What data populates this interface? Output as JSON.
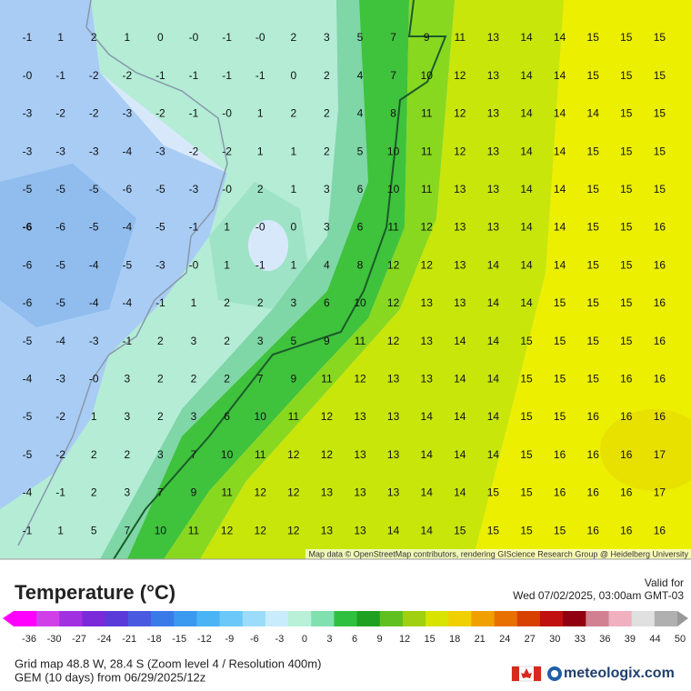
{
  "map": {
    "grid": [
      [
        "-1",
        "1",
        "2",
        "1",
        "0",
        "-0",
        "-1",
        "-0",
        "2",
        "3",
        "5",
        "7",
        "9",
        "11",
        "13",
        "14",
        "14",
        "15",
        "15",
        "15"
      ],
      [
        "-0",
        "-1",
        "-2",
        "-2",
        "-1",
        "-1",
        "-1",
        "-1",
        "0",
        "2",
        "4",
        "7",
        "10",
        "12",
        "13",
        "14",
        "14",
        "15",
        "15",
        "15"
      ],
      [
        "-3",
        "-2",
        "-2",
        "-3",
        "-2",
        "-1",
        "-0",
        "1",
        "2",
        "2",
        "4",
        "8",
        "11",
        "12",
        "13",
        "14",
        "14",
        "14",
        "15",
        "15"
      ],
      [
        "-3",
        "-3",
        "-3",
        "-4",
        "-3",
        "-2",
        "-2",
        "1",
        "1",
        "2",
        "5",
        "10",
        "11",
        "12",
        "13",
        "14",
        "14",
        "15",
        "15",
        "15"
      ],
      [
        "-5",
        "-5",
        "-5",
        "-6",
        "-5",
        "-3",
        "-0",
        "2",
        "1",
        "3",
        "6",
        "10",
        "11",
        "13",
        "13",
        "14",
        "14",
        "15",
        "15",
        "15"
      ],
      [
        "-6",
        "-6",
        "-5",
        "-4",
        "-5",
        "-1",
        "1",
        "-0",
        "0",
        "3",
        "6",
        "11",
        "12",
        "13",
        "13",
        "14",
        "14",
        "15",
        "15",
        "16"
      ],
      [
        "-6",
        "-5",
        "-4",
        "-5",
        "-3",
        "-0",
        "1",
        "-1",
        "1",
        "4",
        "8",
        "12",
        "12",
        "13",
        "14",
        "14",
        "14",
        "15",
        "15",
        "16"
      ],
      [
        "-6",
        "-5",
        "-4",
        "-4",
        "-1",
        "1",
        "2",
        "2",
        "3",
        "6",
        "10",
        "12",
        "13",
        "13",
        "14",
        "14",
        "15",
        "15",
        "15",
        "16"
      ],
      [
        "-5",
        "-4",
        "-3",
        "-1",
        "2",
        "3",
        "2",
        "3",
        "5",
        "9",
        "11",
        "12",
        "13",
        "14",
        "14",
        "15",
        "15",
        "15",
        "15",
        "16"
      ],
      [
        "-4",
        "-3",
        "-0",
        "3",
        "2",
        "2",
        "2",
        "7",
        "9",
        "11",
        "12",
        "13",
        "13",
        "14",
        "14",
        "15",
        "15",
        "15",
        "16",
        "16"
      ],
      [
        "-5",
        "-2",
        "1",
        "3",
        "2",
        "3",
        "6",
        "10",
        "11",
        "12",
        "13",
        "13",
        "14",
        "14",
        "14",
        "15",
        "15",
        "16",
        "16",
        "16"
      ],
      [
        "-5",
        "-2",
        "2",
        "2",
        "3",
        "7",
        "10",
        "11",
        "12",
        "12",
        "13",
        "13",
        "14",
        "14",
        "14",
        "15",
        "16",
        "16",
        "16",
        "17"
      ],
      [
        "-4",
        "-1",
        "2",
        "3",
        "7",
        "9",
        "11",
        "12",
        "12",
        "13",
        "13",
        "13",
        "14",
        "14",
        "15",
        "15",
        "16",
        "16",
        "16",
        "17"
      ],
      [
        "-1",
        "1",
        "5",
        "7",
        "10",
        "11",
        "12",
        "12",
        "12",
        "13",
        "13",
        "14",
        "14",
        "15",
        "15",
        "15",
        "15",
        "16",
        "16",
        "16"
      ]
    ],
    "attribution": "Map data © OpenStreetMap contributors, rendering GIScience Research Group @ Heidelberg University"
  },
  "legend": {
    "title": "Temperature (°C)",
    "scale": [
      "-36",
      "-30",
      "-27",
      "-24",
      "-21",
      "-18",
      "-15",
      "-12",
      "-9",
      "-6",
      "-3",
      "0",
      "3",
      "6",
      "9",
      "12",
      "15",
      "18",
      "21",
      "24",
      "27",
      "30",
      "33",
      "36",
      "39",
      "44",
      "50"
    ]
  },
  "info": {
    "valid_label": "Valid for",
    "valid_time": "Wed 07/02/2025, 03:00am GMT-03",
    "grid_info": "Grid map 48.8 W, 28.4 S (Zoom level 4 / Resolution 400m)",
    "model_info": "GEM (10 days) from 06/29/2025/12z",
    "brand": "meteologix.com"
  }
}
